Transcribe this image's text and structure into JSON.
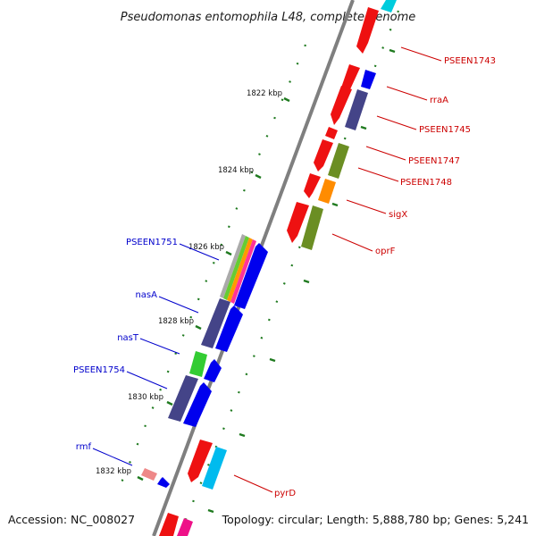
{
  "title": "Pseudomonas entomophila L48, complete genome",
  "footer": {
    "accession": "Accession: NC_008027",
    "topology": "Topology: circular; Length: 5,888,780 bp; Genes: 5,241"
  },
  "colors": {
    "backbone": "#7f7f7f",
    "tick": "#1f7a1f",
    "forward_label": "#cc0000",
    "reverse_label": "#0000cc"
  },
  "kbp_ticks": [
    "1822 kbp",
    "1824 kbp",
    "1826 kbp",
    "1828 kbp",
    "1830 kbp",
    "1832 kbp"
  ],
  "forward_labels": [
    "PSEEN1743",
    "rraA",
    "PSEEN1745",
    "PSEEN1747",
    "PSEEN1748",
    "sigX",
    "oprF",
    "pyrD"
  ],
  "reverse_labels": [
    "PSEEN1751",
    "nasA",
    "nasT",
    "PSEEN1754",
    "rmf"
  ]
}
